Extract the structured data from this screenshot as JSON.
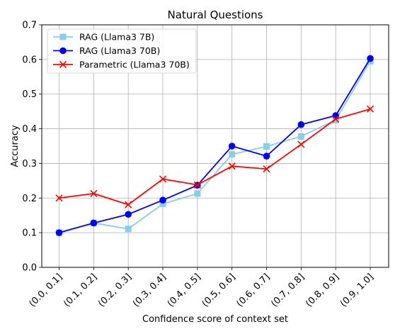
{
  "chart_data": {
    "type": "line",
    "title": "Natural Questions",
    "xlabel": "Confidence score of context set",
    "ylabel": "Accuracy",
    "categories": [
      "(0.0, 0.1]",
      "(0.1, 0.2]",
      "(0.2, 0.3]",
      "(0.3, 0.4]",
      "(0.4, 0.5]",
      "(0.5, 0.6]",
      "(0.6, 0.7]",
      "(0.7, 0.8]",
      "(0.8, 0.9]",
      "(0.9, 1.0]"
    ],
    "ylim": [
      0,
      0.7
    ],
    "yticks": [
      "0.0",
      "0.1",
      "0.2",
      "0.3",
      "0.4",
      "0.5",
      "0.6",
      "0.7"
    ],
    "grid": true,
    "legend_position": "top-left",
    "series": [
      {
        "name": "RAG (Llama3 7B)",
        "color": "#87ceeb",
        "marker": "square",
        "values": [
          0.1,
          0.128,
          0.111,
          0.183,
          0.213,
          0.326,
          0.349,
          0.378,
          0.425,
          0.595
        ]
      },
      {
        "name": "RAG (Llama3 70B)",
        "color": "#0000ff",
        "marker": "circle",
        "values": [
          0.1,
          0.128,
          0.153,
          0.194,
          0.237,
          0.35,
          0.321,
          0.412,
          0.438,
          0.603
        ]
      },
      {
        "name": "Parametric (Llama3 70B)",
        "color": "#ff0000",
        "marker": "x",
        "values": [
          0.2,
          0.213,
          0.181,
          0.255,
          0.238,
          0.292,
          0.284,
          0.355,
          0.428,
          0.457
        ]
      }
    ]
  }
}
